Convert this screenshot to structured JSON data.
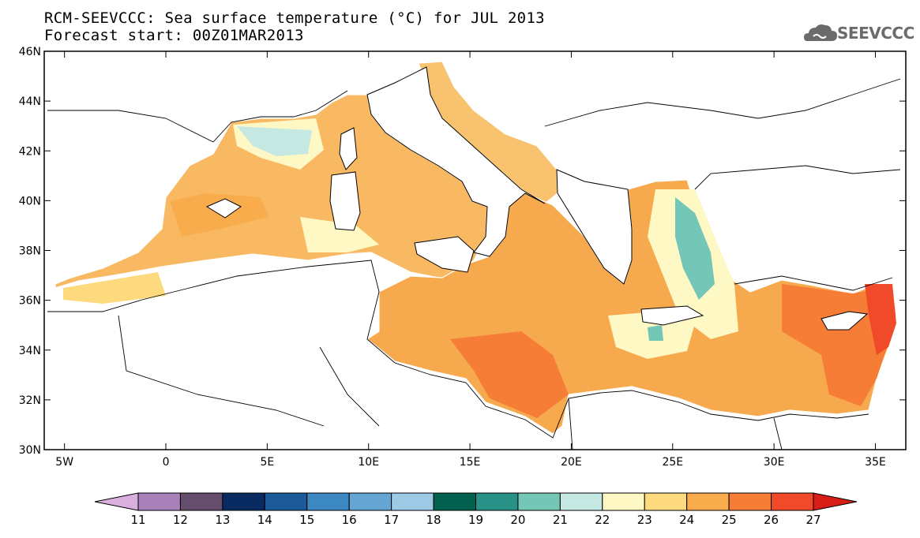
{
  "title": {
    "line1": "RCM-SEEVCCC: Sea surface temperature (°C) for JUL 2013",
    "line2": "Forecast start: 00Z01MAR2013"
  },
  "logo": {
    "text": "SEEVCCC",
    "icon": "cloud-icon"
  },
  "map": {
    "lon_range": [
      -6,
      36.5
    ],
    "lat_range": [
      30,
      46
    ],
    "lat_ticks": [
      "46N",
      "44N",
      "42N",
      "40N",
      "38N",
      "36N",
      "34N",
      "32N",
      "30N"
    ],
    "lon_ticks": [
      "5W",
      "0",
      "5E",
      "10E",
      "15E",
      "20E",
      "25E",
      "30E",
      "35E"
    ],
    "sea_fill": "#f7b55c"
  },
  "colorbar": {
    "labels": [
      "11",
      "12",
      "13",
      "14",
      "15",
      "16",
      "17",
      "18",
      "19",
      "20",
      "21",
      "22",
      "23",
      "24",
      "25",
      "26",
      "27"
    ],
    "colors": [
      "#d9b0dd",
      "#a880b8",
      "#654d6e",
      "#082a61",
      "#1c5a9a",
      "#3c88c0",
      "#65a5d4",
      "#9dc9e4",
      "#03624f",
      "#2a9188",
      "#74c6b7",
      "#c6e8e2",
      "#fef8c4",
      "#fdda7e",
      "#f8ac4c",
      "#f67d36",
      "#f14a2a",
      "#d81d17"
    ]
  }
}
